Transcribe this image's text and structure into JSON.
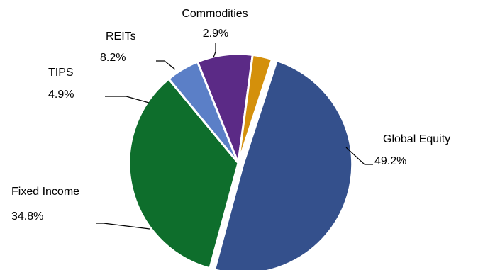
{
  "chart_data": {
    "type": "pie",
    "title": "",
    "slices": [
      {
        "name": "Global Equity",
        "value": 49.2,
        "label": "49.2%",
        "color": "#34508C"
      },
      {
        "name": "Fixed Income",
        "value": 34.8,
        "label": "34.8%",
        "color": "#0E6E2C"
      },
      {
        "name": "TIPS",
        "value": 4.9,
        "label": "4.9%",
        "color": "#5B7FC7"
      },
      {
        "name": "REITs",
        "value": 8.2,
        "label": "8.2%",
        "color": "#5B2A86"
      },
      {
        "name": "Commodities",
        "value": 2.9,
        "label": "2.9%",
        "color": "#D4900B"
      }
    ]
  }
}
